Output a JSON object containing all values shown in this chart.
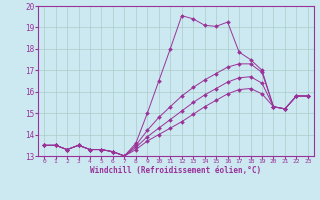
{
  "xlabel": "Windchill (Refroidissement éolien,°C)",
  "xlim": [
    -0.5,
    23.5
  ],
  "ylim": [
    13,
    20
  ],
  "xticks": [
    0,
    1,
    2,
    3,
    4,
    5,
    6,
    7,
    8,
    9,
    10,
    11,
    12,
    13,
    14,
    15,
    16,
    17,
    18,
    19,
    20,
    21,
    22,
    23
  ],
  "yticks": [
    13,
    14,
    15,
    16,
    17,
    18,
    19,
    20
  ],
  "bg_color": "#cce8f0",
  "line_color": "#993399",
  "grid_color": "#aacccc",
  "lines": [
    {
      "x": [
        0,
        1,
        2,
        3,
        4,
        5,
        6,
        7,
        8,
        9,
        10,
        11,
        12,
        13,
        14,
        15,
        16,
        17,
        18,
        19,
        20,
        21,
        22,
        23
      ],
      "y": [
        13.5,
        13.5,
        13.3,
        13.5,
        13.3,
        13.3,
        13.2,
        13.0,
        13.6,
        15.0,
        16.5,
        18.0,
        19.55,
        19.4,
        19.1,
        19.05,
        19.25,
        17.85,
        17.5,
        17.0,
        15.3,
        15.2,
        15.8,
        15.8
      ]
    },
    {
      "x": [
        0,
        1,
        2,
        3,
        4,
        5,
        6,
        7,
        8,
        9,
        10,
        11,
        12,
        13,
        14,
        15,
        16,
        17,
        18,
        19,
        20,
        21,
        22,
        23
      ],
      "y": [
        13.5,
        13.5,
        13.3,
        13.5,
        13.3,
        13.3,
        13.2,
        13.0,
        13.5,
        14.2,
        14.8,
        15.3,
        15.8,
        16.2,
        16.55,
        16.85,
        17.15,
        17.3,
        17.3,
        16.9,
        15.3,
        15.2,
        15.8,
        15.8
      ]
    },
    {
      "x": [
        0,
        1,
        2,
        3,
        4,
        5,
        6,
        7,
        8,
        9,
        10,
        11,
        12,
        13,
        14,
        15,
        16,
        17,
        18,
        19,
        20,
        21,
        22,
        23
      ],
      "y": [
        13.5,
        13.5,
        13.3,
        13.5,
        13.3,
        13.3,
        13.2,
        13.0,
        13.4,
        13.9,
        14.3,
        14.7,
        15.1,
        15.5,
        15.85,
        16.15,
        16.45,
        16.65,
        16.7,
        16.4,
        15.3,
        15.2,
        15.8,
        15.8
      ]
    },
    {
      "x": [
        0,
        1,
        2,
        3,
        4,
        5,
        6,
        7,
        8,
        9,
        10,
        11,
        12,
        13,
        14,
        15,
        16,
        17,
        18,
        19,
        20,
        21,
        22,
        23
      ],
      "y": [
        13.5,
        13.5,
        13.3,
        13.5,
        13.3,
        13.3,
        13.2,
        13.0,
        13.3,
        13.7,
        14.0,
        14.3,
        14.6,
        14.95,
        15.3,
        15.6,
        15.9,
        16.1,
        16.15,
        15.9,
        15.3,
        15.2,
        15.8,
        15.8
      ]
    }
  ]
}
